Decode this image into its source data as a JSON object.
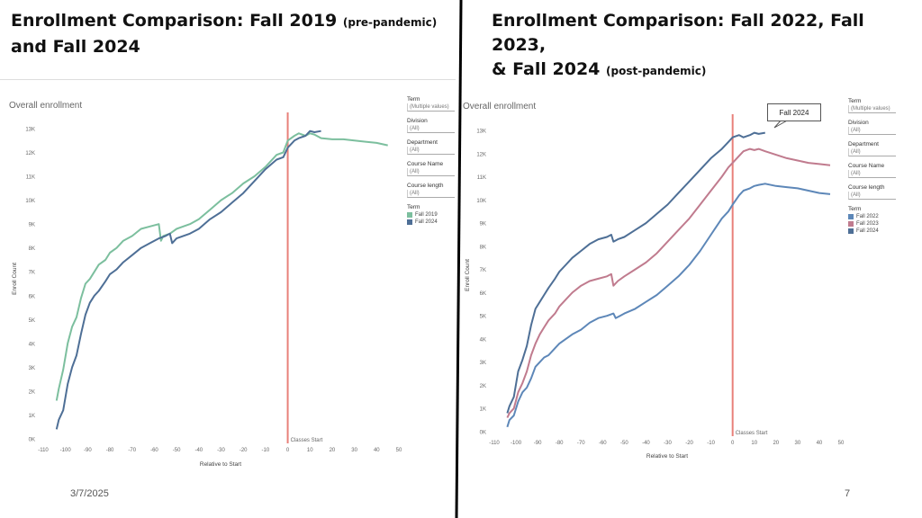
{
  "slide": {
    "title_left_main": "Enrollment Comparison: Fall 2019",
    "title_left_note": "(pre-pandemic)",
    "title_left_line2": "and Fall 2024",
    "title_right_main": "Enrollment Comparison: Fall 2022, Fall 2023,",
    "title_right_line2": "& Fall 2024",
    "title_right_note": "(post-pandemic)",
    "date": "3/7/2025",
    "page": "7"
  },
  "filters": [
    {
      "label": "Term",
      "value": "(Multiple values)"
    },
    {
      "label": "Division",
      "value": "(All)"
    },
    {
      "label": "Department",
      "value": "(All)"
    },
    {
      "label": "Course Name",
      "value": "(All)"
    },
    {
      "label": "Course length",
      "value": "(All)"
    }
  ],
  "legend_title": "Term",
  "colors": {
    "fall2019": "#7cbf9e",
    "fall2024": "#4e6f96",
    "fall2023": "#c07b8e",
    "fall2022": "#5d87b8",
    "marker": "#e8807a"
  },
  "callout": "Fall 2024",
  "chart_data": [
    {
      "type": "line",
      "title": "Overall enrollment",
      "xlabel": "Relative to Start",
      "ylabel": "Enroll Count",
      "xlim": [
        -110,
        50
      ],
      "ylim": [
        0,
        13000
      ],
      "xticks": [
        -110,
        -100,
        -90,
        -80,
        -70,
        -60,
        -50,
        -40,
        -30,
        -20,
        -10,
        0,
        10,
        20,
        30,
        40,
        50
      ],
      "yticks": [
        0,
        1000,
        2000,
        3000,
        4000,
        5000,
        6000,
        7000,
        8000,
        9000,
        10000,
        11000,
        12000,
        13000
      ],
      "ytick_labels": [
        "0K",
        "1K",
        "2K",
        "3K",
        "4K",
        "5K",
        "6K",
        "7K",
        "8K",
        "9K",
        "10K",
        "11K",
        "12K",
        "13K"
      ],
      "vline": {
        "x": 0,
        "label": "Classes Start"
      },
      "series": [
        {
          "name": "Fall 2019",
          "color_key": "fall2019",
          "x": [
            -104,
            -103,
            -101,
            -99,
            -97,
            -95,
            -93,
            -91,
            -89,
            -87,
            -85,
            -82,
            -80,
            -77,
            -74,
            -70,
            -66,
            -62,
            -58,
            -57,
            -56,
            -53,
            -50,
            -47,
            -44,
            -40,
            -35,
            -30,
            -25,
            -20,
            -15,
            -10,
            -5,
            -2,
            0,
            3,
            5,
            8,
            10,
            12,
            15,
            20,
            25,
            30,
            35,
            40,
            45
          ],
          "y": [
            1600,
            2100,
            2900,
            4000,
            4700,
            5100,
            5900,
            6500,
            6700,
            7000,
            7300,
            7500,
            7800,
            8000,
            8300,
            8500,
            8800,
            8900,
            9000,
            8300,
            8500,
            8600,
            8800,
            8900,
            9000,
            9200,
            9600,
            10000,
            10300,
            10700,
            11000,
            11400,
            11900,
            12000,
            12500,
            12700,
            12800,
            12700,
            12800,
            12750,
            12600,
            12550,
            12550,
            12500,
            12450,
            12400,
            12300
          ]
        },
        {
          "name": "Fall 2024",
          "color_key": "fall2024",
          "x": [
            -104,
            -103,
            -101,
            -99,
            -97,
            -95,
            -93,
            -91,
            -89,
            -87,
            -85,
            -82,
            -80,
            -77,
            -74,
            -70,
            -66,
            -62,
            -58,
            -55,
            -53,
            -52,
            -50,
            -47,
            -44,
            -40,
            -35,
            -30,
            -25,
            -20,
            -15,
            -10,
            -5,
            -2,
            0,
            3,
            5,
            8,
            10,
            12,
            15
          ],
          "y": [
            400,
            800,
            1200,
            2300,
            3000,
            3500,
            4400,
            5200,
            5700,
            6000,
            6200,
            6600,
            6900,
            7100,
            7400,
            7700,
            8000,
            8200,
            8400,
            8500,
            8600,
            8200,
            8400,
            8500,
            8600,
            8800,
            9200,
            9500,
            9900,
            10300,
            10800,
            11300,
            11700,
            11800,
            12200,
            12500,
            12600,
            12700,
            12900,
            12850,
            12900
          ]
        }
      ],
      "legend": [
        "Fall 2019",
        "Fall 2024"
      ]
    },
    {
      "type": "line",
      "title": "Overall enrollment",
      "xlabel": "Relative to Start",
      "ylabel": "Enroll Count",
      "xlim": [
        -110,
        50
      ],
      "ylim": [
        0,
        13000
      ],
      "xticks": [
        -110,
        -100,
        -90,
        -80,
        -70,
        -60,
        -50,
        -40,
        -30,
        -20,
        -10,
        0,
        10,
        20,
        30,
        40,
        50
      ],
      "yticks": [
        0,
        1000,
        2000,
        3000,
        4000,
        5000,
        6000,
        7000,
        8000,
        9000,
        10000,
        11000,
        12000,
        13000
      ],
      "ytick_labels": [
        "0K",
        "1K",
        "2K",
        "3K",
        "4K",
        "5K",
        "6K",
        "7K",
        "8K",
        "9K",
        "10K",
        "11K",
        "12K",
        "13K"
      ],
      "vline": {
        "x": 0,
        "label": "Classes Start"
      },
      "series": [
        {
          "name": "Fall 2022",
          "color_key": "fall2022",
          "x": [
            -104,
            -103,
            -101,
            -99,
            -97,
            -95,
            -93,
            -91,
            -89,
            -87,
            -85,
            -82,
            -80,
            -77,
            -74,
            -70,
            -66,
            -62,
            -58,
            -55,
            -54,
            -52,
            -50,
            -45,
            -40,
            -35,
            -30,
            -25,
            -20,
            -15,
            -10,
            -5,
            -2,
            0,
            3,
            5,
            8,
            10,
            12,
            15,
            20,
            25,
            30,
            35,
            40,
            45
          ],
          "y": [
            200,
            500,
            700,
            1300,
            1700,
            1900,
            2300,
            2800,
            3000,
            3200,
            3300,
            3600,
            3800,
            4000,
            4200,
            4400,
            4700,
            4900,
            5000,
            5100,
            4900,
            5000,
            5100,
            5300,
            5600,
            5900,
            6300,
            6700,
            7200,
            7800,
            8500,
            9200,
            9500,
            9800,
            10200,
            10400,
            10500,
            10600,
            10650,
            10700,
            10600,
            10550,
            10500,
            10400,
            10300,
            10250
          ]
        },
        {
          "name": "Fall 2023",
          "color_key": "fall2023",
          "x": [
            -104,
            -103,
            -101,
            -99,
            -97,
            -95,
            -93,
            -91,
            -89,
            -87,
            -85,
            -82,
            -80,
            -77,
            -74,
            -70,
            -66,
            -62,
            -58,
            -56,
            -55,
            -53,
            -50,
            -45,
            -40,
            -35,
            -30,
            -25,
            -20,
            -15,
            -10,
            -5,
            -2,
            0,
            3,
            5,
            8,
            10,
            12,
            15,
            20,
            25,
            30,
            35,
            40,
            45
          ],
          "y": [
            600,
            800,
            1000,
            1700,
            2100,
            2600,
            3300,
            3800,
            4200,
            4500,
            4800,
            5100,
            5400,
            5700,
            6000,
            6300,
            6500,
            6600,
            6700,
            6800,
            6300,
            6500,
            6700,
            7000,
            7300,
            7700,
            8200,
            8700,
            9200,
            9800,
            10400,
            11000,
            11400,
            11600,
            11900,
            12100,
            12200,
            12150,
            12200,
            12100,
            11950,
            11800,
            11700,
            11600,
            11550,
            11500
          ]
        },
        {
          "name": "Fall 2024",
          "color_key": "fall2024",
          "x": [
            -104,
            -103,
            -101,
            -99,
            -97,
            -95,
            -93,
            -91,
            -89,
            -87,
            -85,
            -82,
            -80,
            -77,
            -74,
            -70,
            -66,
            -62,
            -58,
            -56,
            -55,
            -53,
            -50,
            -45,
            -40,
            -35,
            -30,
            -25,
            -20,
            -15,
            -10,
            -5,
            -2,
            0,
            3,
            5,
            8,
            10,
            12,
            15
          ],
          "y": [
            800,
            1100,
            1500,
            2600,
            3100,
            3700,
            4600,
            5300,
            5600,
            5900,
            6200,
            6600,
            6900,
            7200,
            7500,
            7800,
            8100,
            8300,
            8400,
            8500,
            8200,
            8300,
            8400,
            8700,
            9000,
            9400,
            9800,
            10300,
            10800,
            11300,
            11800,
            12200,
            12500,
            12700,
            12800,
            12700,
            12800,
            12900,
            12850,
            12900
          ]
        }
      ],
      "legend": [
        "Fall 2022",
        "Fall 2023",
        "Fall 2024"
      ]
    }
  ]
}
